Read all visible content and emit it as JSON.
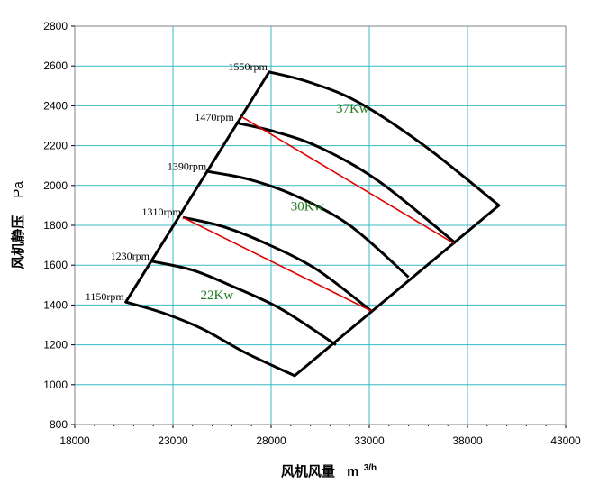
{
  "chart_data": {
    "type": "line",
    "xlabel": "风机风量",
    "xlabel_unit": "m",
    "xlabel_unit_sup": "3/h",
    "ylabel": "风机静压",
    "ylabel_unit": "Pa",
    "xlim": [
      18000,
      43000
    ],
    "ylim": [
      800,
      2800
    ],
    "x_ticks": [
      18000,
      23000,
      28000,
      33000,
      38000,
      43000
    ],
    "x_tick_labels": [
      "18000",
      "23000",
      "28000",
      "33000",
      "38000",
      "43000"
    ],
    "y_ticks": [
      800,
      1000,
      1200,
      1400,
      1600,
      1800,
      2000,
      2200,
      2400,
      2600,
      2800
    ],
    "y_tick_labels": [
      "800",
      "1000",
      "1200",
      "1400",
      "1600",
      "1800",
      "2000",
      "2200",
      "2400",
      "2600",
      "2800"
    ],
    "grid": true,
    "series": [
      {
        "name": "1150rpm",
        "points": [
          [
            20600,
            1415
          ],
          [
            22500,
            1360
          ],
          [
            24500,
            1280
          ],
          [
            26700,
            1160
          ],
          [
            29200,
            1045
          ]
        ]
      },
      {
        "name": "1230rpm",
        "points": [
          [
            21900,
            1620
          ],
          [
            24000,
            1575
          ],
          [
            26000,
            1495
          ],
          [
            28500,
            1380
          ],
          [
            31300,
            1200
          ]
        ]
      },
      {
        "name": "1310rpm",
        "points": [
          [
            23500,
            1840
          ],
          [
            25500,
            1795
          ],
          [
            27600,
            1715
          ],
          [
            30300,
            1580
          ],
          [
            33100,
            1370
          ]
        ]
      },
      {
        "name": "1390rpm",
        "points": [
          [
            24800,
            2070
          ],
          [
            26900,
            2030
          ],
          [
            29200,
            1950
          ],
          [
            32000,
            1800
          ],
          [
            35000,
            1540
          ]
        ]
      },
      {
        "name": "1470rpm",
        "points": [
          [
            26200,
            2315
          ],
          [
            28200,
            2270
          ],
          [
            30500,
            2190
          ],
          [
            33500,
            2020
          ],
          [
            37400,
            1710
          ]
        ]
      },
      {
        "name": "1550rpm",
        "points": [
          [
            27900,
            2570
          ],
          [
            29900,
            2520
          ],
          [
            32400,
            2420
          ],
          [
            35800,
            2200
          ],
          [
            39600,
            1900
          ]
        ]
      }
    ],
    "envelope": {
      "left": [
        [
          20600,
          1415
        ],
        [
          27900,
          2570
        ]
      ],
      "right": [
        [
          29200,
          1045
        ],
        [
          39600,
          1900
        ]
      ]
    },
    "power_lines": [
      {
        "from": [
          23500,
          1840
        ],
        "to": [
          33100,
          1370
        ],
        "color": "#e00000"
      },
      {
        "from": [
          26500,
          2345
        ],
        "to": [
          37300,
          1710
        ],
        "color": "#e00000"
      }
    ],
    "power_labels": [
      {
        "text": "22Kw",
        "x": 24400,
        "y": 1430
      },
      {
        "text": "30Kw",
        "x": 29000,
        "y": 1875
      },
      {
        "text": "37Kw",
        "x": 31300,
        "y": 2365
      }
    ],
    "colors": {
      "curve": "#000000",
      "grid": "#38b9c6",
      "power_line": "#e00000",
      "power_text": "#1e7b1e"
    }
  }
}
